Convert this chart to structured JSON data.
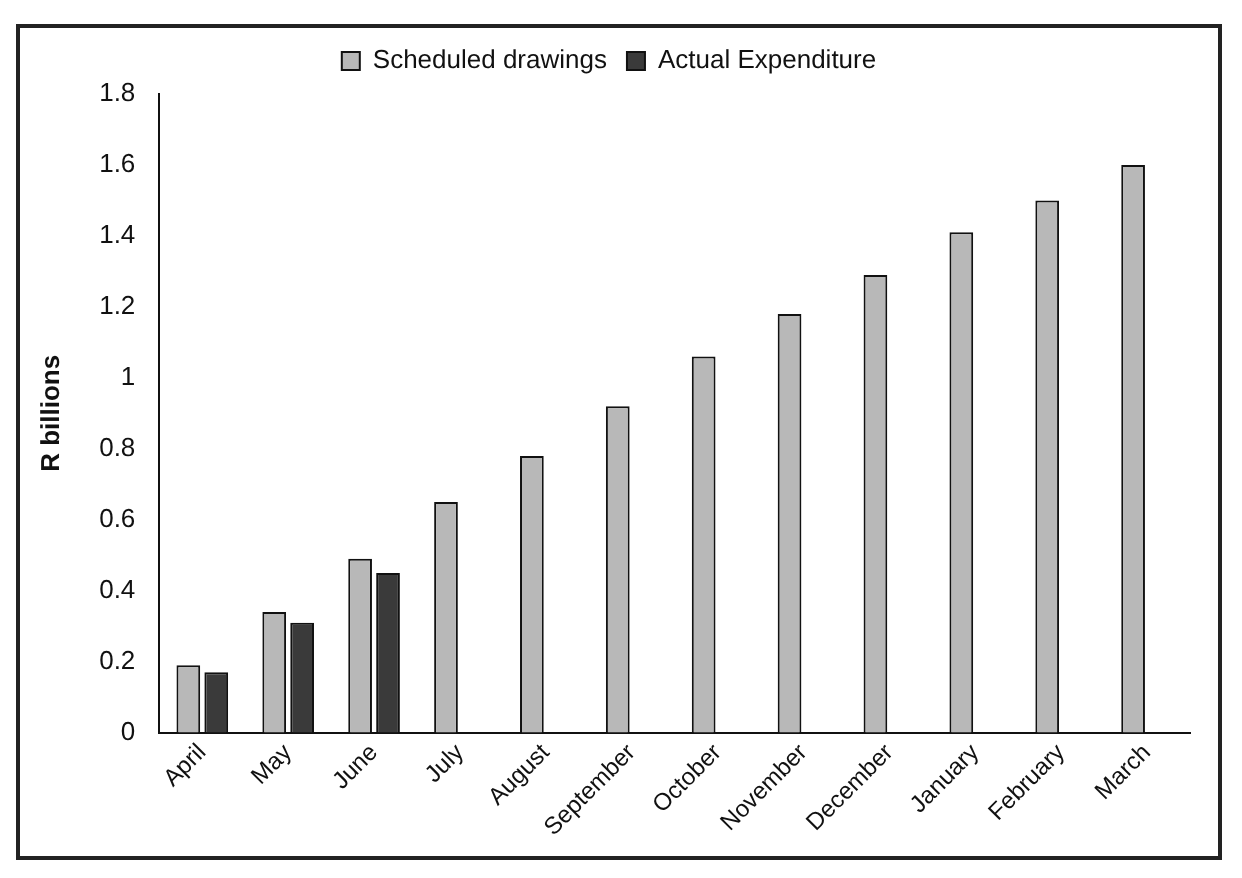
{
  "chart_data": {
    "type": "bar",
    "ylabel": "R billions",
    "categories": [
      "April",
      "May",
      "June",
      "July",
      "August",
      "September",
      "October",
      "November",
      "December",
      "January",
      "February",
      "March"
    ],
    "series": [
      {
        "name": "Scheduled drawings",
        "color": "#b8b8b8",
        "values": [
          0.19,
          0.34,
          0.49,
          0.65,
          0.78,
          0.92,
          1.06,
          1.18,
          1.29,
          1.41,
          1.5,
          1.6
        ]
      },
      {
        "name": "Actual Expenditure",
        "color": "#3a3a3a",
        "values": [
          0.17,
          0.31,
          0.45,
          null,
          null,
          null,
          null,
          null,
          null,
          null,
          null,
          null
        ]
      }
    ],
    "ylim": [
      0,
      1.8
    ],
    "yticks": [
      0,
      0.2,
      0.4,
      0.6,
      0.8,
      1,
      1.2,
      1.4,
      1.6,
      1.8
    ],
    "grid": false,
    "legend": "top"
  }
}
